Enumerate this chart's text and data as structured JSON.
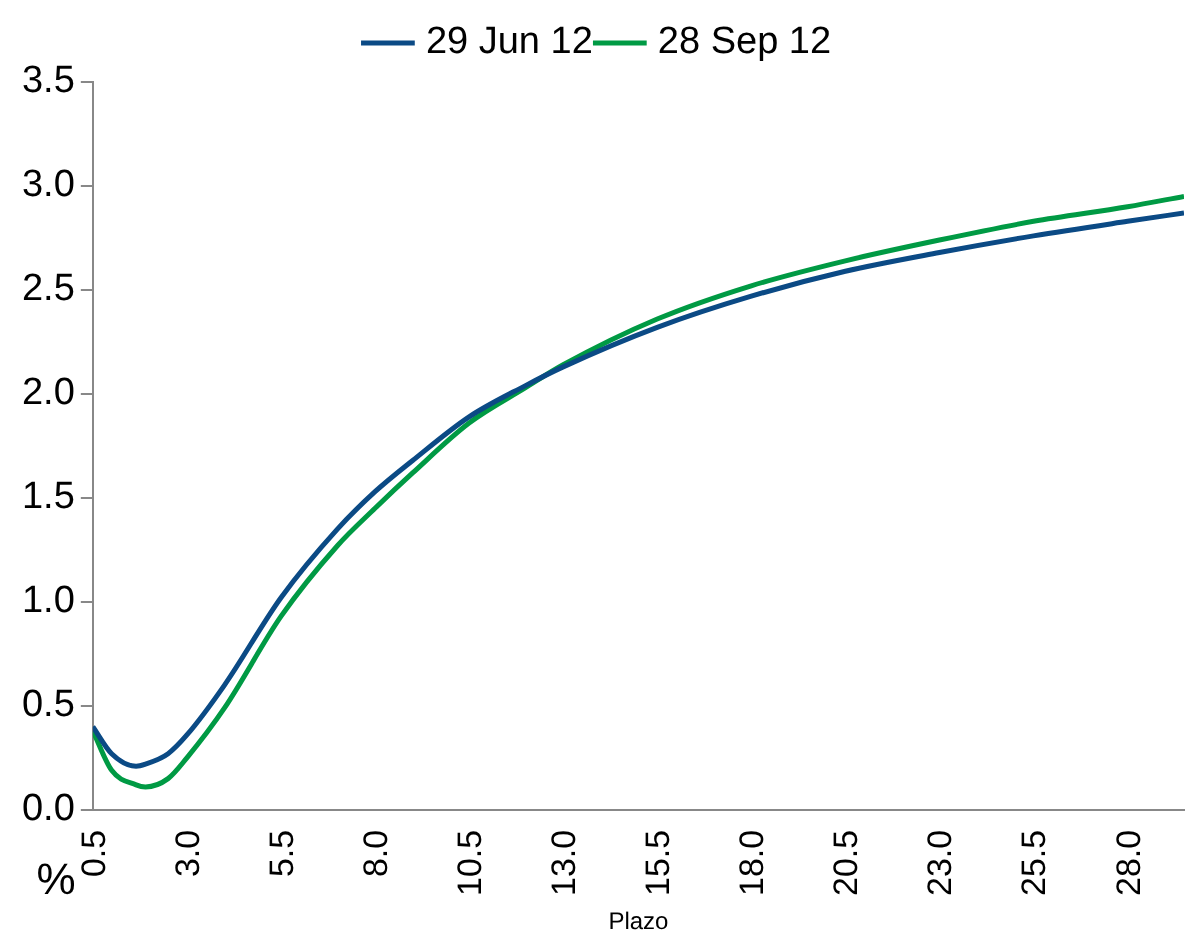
{
  "chart_data": {
    "type": "line",
    "xlabel": "Plazo",
    "ylabel": "%",
    "x": [
      0.5,
      1.0,
      1.65,
      1.9,
      2.5,
      3.0,
      4.0,
      5.5,
      7.0,
      8.0,
      9.0,
      10.5,
      12.0,
      13.0,
      15.5,
      18.0,
      20.5,
      23.0,
      25.5,
      28.0,
      29.5
    ],
    "series": [
      {
        "name": "29 Jun 12",
        "color": "#0b4a85",
        "values": [
          0.4,
          0.27,
          0.21,
          0.22,
          0.27,
          0.36,
          0.6,
          1.02,
          1.35,
          1.53,
          1.68,
          1.89,
          2.04,
          2.13,
          2.32,
          2.47,
          2.59,
          2.68,
          2.76,
          2.83,
          2.87
        ]
      },
      {
        "name": "28 Sep 12",
        "color": "#009a44",
        "values": [
          0.38,
          0.19,
          0.12,
          0.11,
          0.15,
          0.25,
          0.49,
          0.93,
          1.27,
          1.45,
          1.62,
          1.86,
          2.03,
          2.14,
          2.36,
          2.52,
          2.64,
          2.74,
          2.83,
          2.9,
          2.95
        ]
      }
    ],
    "xlim": [
      0.5,
      29.5
    ],
    "xticks": [
      {
        "value": 0.5,
        "label": "0.5"
      },
      {
        "value": 3,
        "label": "3.0"
      },
      {
        "value": 5.5,
        "label": "5.5"
      },
      {
        "value": 8,
        "label": "8.0"
      },
      {
        "value": 10.5,
        "label": "10.5"
      },
      {
        "value": 13,
        "label": "13.0"
      },
      {
        "value": 15.5,
        "label": "15.5"
      },
      {
        "value": 18,
        "label": "18.0"
      },
      {
        "value": 20.5,
        "label": "20.5"
      },
      {
        "value": 23,
        "label": "23.0"
      },
      {
        "value": 25.5,
        "label": "25.5"
      },
      {
        "value": 28,
        "label": "28.0"
      }
    ],
    "ylim": [
      0,
      3.5
    ],
    "yticks": [
      {
        "value": 0,
        "label": "0.0"
      },
      {
        "value": 0.5,
        "label": "0.5"
      },
      {
        "value": 1,
        "label": "1.0"
      },
      {
        "value": 1.5,
        "label": "1.5"
      },
      {
        "value": 2,
        "label": "2.0"
      },
      {
        "value": 2.5,
        "label": "2.5"
      },
      {
        "value": 3,
        "label": "3.0"
      },
      {
        "value": 3.5,
        "label": "3.5"
      }
    ],
    "grid": false,
    "legend": "top",
    "marker": "none",
    "line_style": "solid"
  }
}
